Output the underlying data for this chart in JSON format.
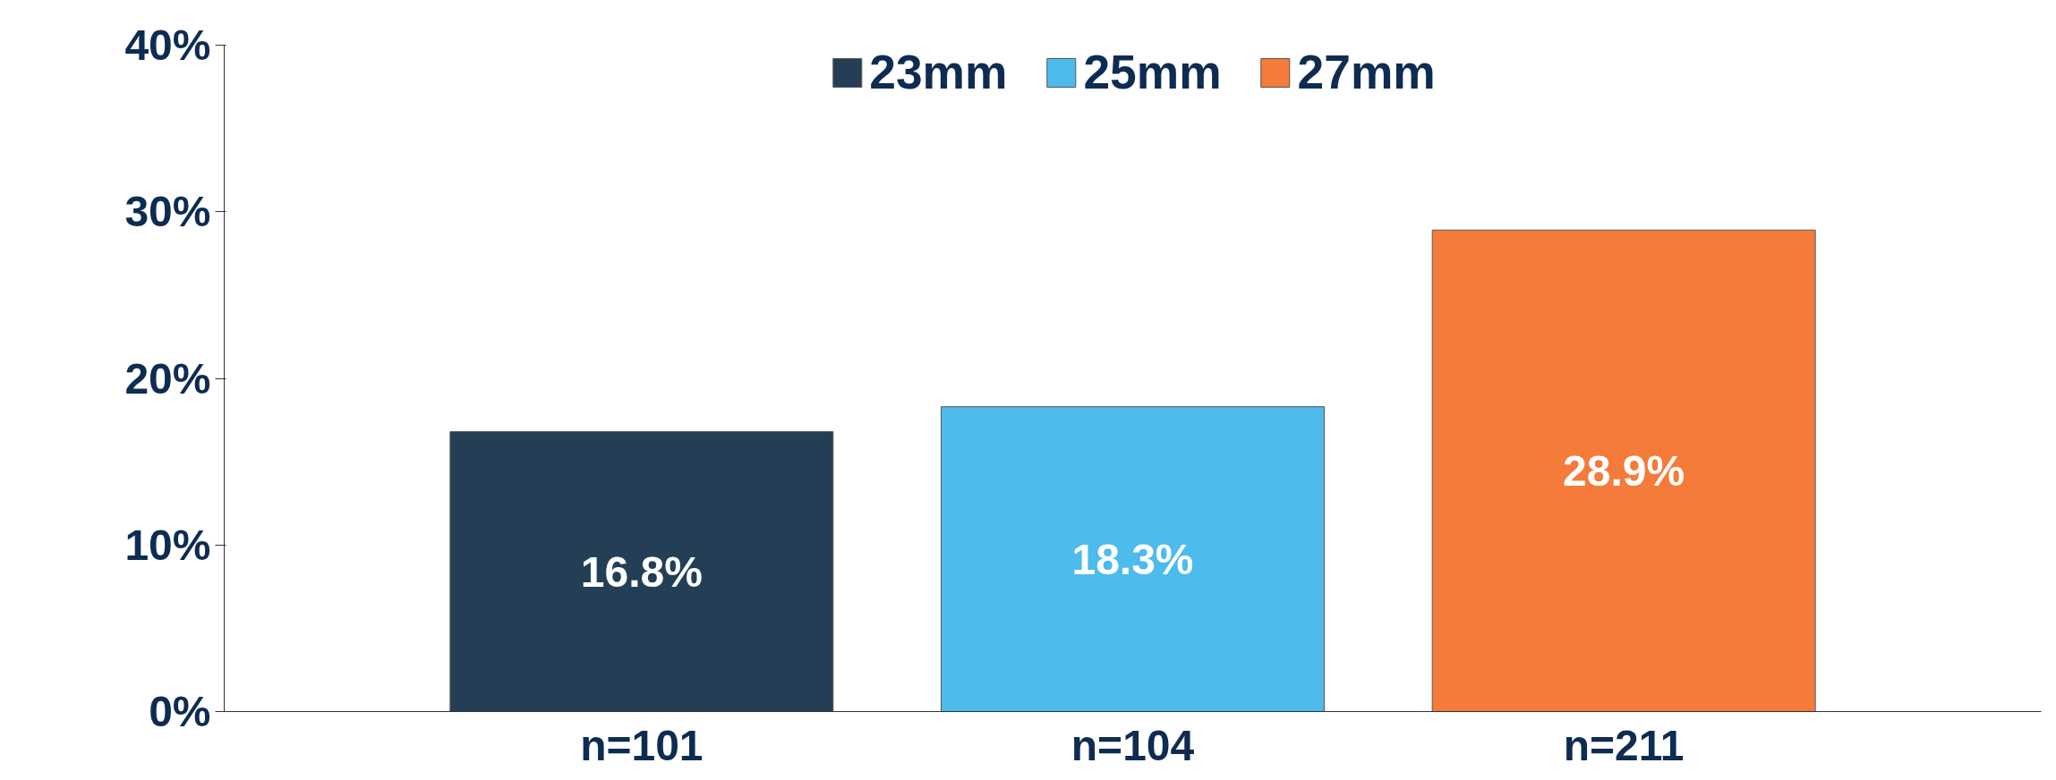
{
  "chart_data": {
    "type": "bar",
    "categories": [
      "n=101",
      "n=104",
      "n=211"
    ],
    "series": [
      {
        "name": "23mm",
        "color": "#243f55",
        "values": [
          16.8,
          null,
          null
        ],
        "value_labels": [
          "16.8%",
          null,
          null
        ]
      },
      {
        "name": "25mm",
        "color": "#4dbbeb",
        "values": [
          null,
          18.3,
          null
        ],
        "value_labels": [
          null,
          "18.3%",
          null
        ]
      },
      {
        "name": "27mm",
        "color": "#f47b3a",
        "values": [
          null,
          null,
          28.9
        ],
        "value_labels": [
          null,
          null,
          "28.9%"
        ]
      }
    ],
    "ylim": [
      0,
      40
    ],
    "yticks": [
      {
        "value": 0,
        "label": "0%"
      },
      {
        "value": 10,
        "label": "10%"
      },
      {
        "value": 20,
        "label": "20%"
      },
      {
        "value": 30,
        "label": "30%"
      },
      {
        "value": 40,
        "label": "40%"
      }
    ],
    "grid": false,
    "legend": "top"
  }
}
